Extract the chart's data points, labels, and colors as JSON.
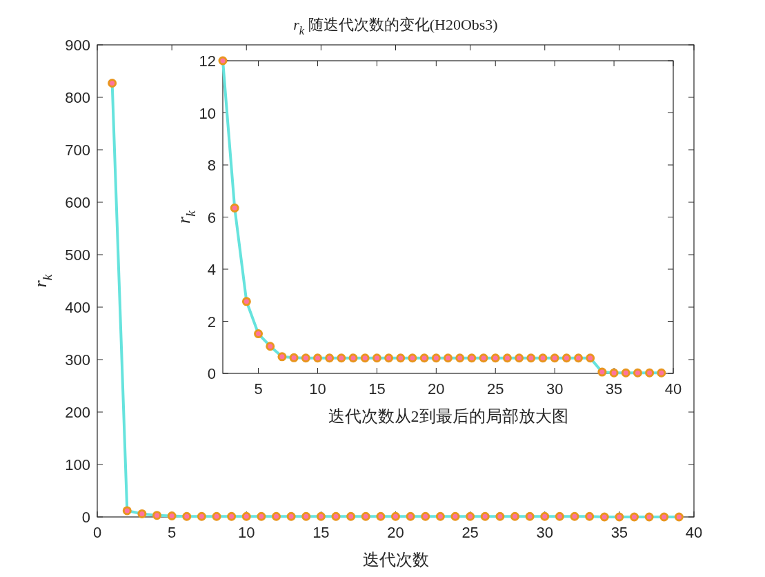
{
  "chart_data": [
    {
      "type": "line",
      "title": "*r*$_{k}$ 随迭代次数的变化(H20Obs3)",
      "xlabel": "迭代次数",
      "ylabel": "*r*$_{k}$",
      "x": [
        1,
        2,
        3,
        4,
        5,
        6,
        7,
        8,
        9,
        10,
        11,
        12,
        13,
        14,
        15,
        16,
        17,
        18,
        19,
        20,
        21,
        22,
        23,
        24,
        25,
        26,
        27,
        28,
        29,
        30,
        31,
        32,
        33,
        34,
        35,
        36,
        37,
        38,
        39
      ],
      "series": [
        {
          "color": "#66e3dd",
          "values": [
            827,
            12,
            6,
            3,
            2,
            1,
            1,
            1,
            1,
            1,
            1,
            1,
            1,
            1,
            1,
            1,
            1,
            1,
            1,
            1,
            1,
            1,
            1,
            1,
            1,
            1,
            1,
            1,
            1,
            1,
            1,
            1,
            1,
            0,
            0,
            0,
            0,
            0,
            0
          ]
        }
      ],
      "xlim": [
        0,
        40
      ],
      "xticks": [
        0,
        5,
        10,
        15,
        20,
        25,
        30,
        35,
        40
      ],
      "ylim": [
        0,
        900
      ],
      "yticks": [
        0,
        100,
        200,
        300,
        400,
        500,
        600,
        700,
        800,
        900
      ],
      "marker": "circle",
      "line_style": "solid"
    },
    {
      "type": "line",
      "xlabel": "迭代次数从2到最后的局部放大图",
      "ylabel": "*r*$_{k}$",
      "x": [
        2,
        3,
        4,
        5,
        6,
        7,
        8,
        9,
        10,
        11,
        12,
        13,
        14,
        15,
        16,
        17,
        18,
        19,
        20,
        21,
        22,
        23,
        24,
        25,
        26,
        27,
        28,
        29,
        30,
        31,
        32,
        33,
        34,
        35,
        36,
        37,
        38,
        39
      ],
      "series": [
        {
          "color": "#66e3dd",
          "values": [
            12.0,
            6.35,
            2.76,
            1.52,
            1.04,
            0.64,
            0.6,
            0.59,
            0.59,
            0.59,
            0.59,
            0.59,
            0.59,
            0.59,
            0.59,
            0.59,
            0.59,
            0.59,
            0.59,
            0.59,
            0.59,
            0.59,
            0.59,
            0.59,
            0.59,
            0.59,
            0.59,
            0.59,
            0.59,
            0.59,
            0.59,
            0.59,
            0.05,
            0.02,
            0.02,
            0.02,
            0.02,
            0.02
          ]
        }
      ],
      "xlim": [
        2,
        40
      ],
      "xticks": [
        5,
        10,
        15,
        20,
        25,
        30,
        35,
        40
      ],
      "ylim": [
        0,
        12
      ],
      "yticks": [
        0,
        2,
        4,
        6,
        8,
        10,
        12
      ],
      "marker": "circle",
      "line_style": "solid"
    }
  ]
}
